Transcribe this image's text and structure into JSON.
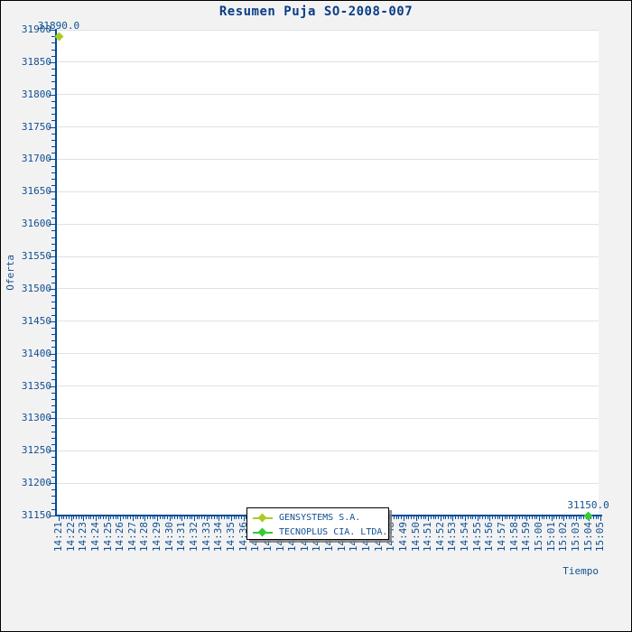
{
  "colors": {
    "background": "#f2f2f3",
    "plot_background": "#ffffff",
    "gridline": "#e1e1e4",
    "axis": "#004c99",
    "text": "#11508f",
    "title_text": "#0a3d85",
    "legend_border": "#000000"
  },
  "chart_data": {
    "type": "scatter",
    "title": "Resumen Puja SO-2008-007",
    "xlabel": "Tiempo",
    "ylabel": "Oferta",
    "ylim": [
      31150,
      31900
    ],
    "y_tick_step": 50,
    "y_minor_step": 10,
    "x_minor_per_interval": 4,
    "grid": "horizontal-major",
    "y_ticks": [
      31150,
      31200,
      31250,
      31300,
      31350,
      31400,
      31450,
      31500,
      31550,
      31600,
      31650,
      31700,
      31750,
      31800,
      31850,
      31900
    ],
    "x_tick_labels": [
      "14:21",
      "14:22",
      "14:23",
      "14:24",
      "14:25",
      "14:26",
      "14:27",
      "14:28",
      "14:29",
      "14:30",
      "14:31",
      "14:32",
      "14:33",
      "14:34",
      "14:35",
      "14:36",
      "14:37",
      "14:38",
      "14:39",
      "14:40",
      "14:41",
      "14:42",
      "14:43",
      "14:44",
      "14:45",
      "14:46",
      "14:47",
      "14:48",
      "14:49",
      "14:50",
      "14:51",
      "14:52",
      "14:53",
      "14:54",
      "14:55",
      "14:56",
      "14:57",
      "14:58",
      "14:59",
      "15:00",
      "15:01",
      "15:02",
      "15:03",
      "15:04",
      "15:05"
    ],
    "legend": {
      "position": "bottom-center",
      "entries": [
        {
          "label": "GENSYSTEMS S.A.",
          "color": "#aacc22",
          "marker": "diamond-line"
        },
        {
          "label": "TECNOPLUS CIA. LTDA.",
          "color": "#33cc33",
          "marker": "diamond-line"
        }
      ]
    },
    "series": [
      {
        "name": "GENSYSTEMS S.A.",
        "color": "#aacc22",
        "marker": "diamond",
        "points": [
          {
            "x_label": "14:21",
            "x_index": 0,
            "y": 31890.0,
            "annotation": "31890.0"
          }
        ]
      },
      {
        "name": "TECNOPLUS CIA. LTDA.",
        "color": "#33cc33",
        "marker": "diamond",
        "points": [
          {
            "x_label": "15:04",
            "x_index": 43,
            "y": 31150.0,
            "annotation": "31150.0"
          }
        ]
      }
    ]
  }
}
